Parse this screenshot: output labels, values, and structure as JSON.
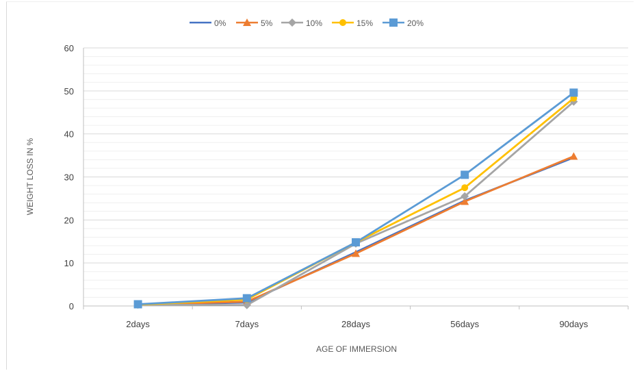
{
  "chart_data": {
    "type": "line",
    "title": "",
    "xlabel": "AGE OF IMMERSION",
    "ylabel": "WEIGHT LOSS IN %",
    "categories": [
      "2days",
      "7days",
      "28days",
      "56days",
      "90days"
    ],
    "ylim": [
      0,
      60
    ],
    "yticks": [
      0,
      10,
      20,
      30,
      40,
      50,
      60
    ],
    "grid": true,
    "legend_position": "top",
    "series": [
      {
        "name": "0%",
        "color": "#4472c4",
        "marker": "none",
        "values": [
          0.3,
          0.8,
          12.5,
          24.5,
          34.5
        ]
      },
      {
        "name": "5%",
        "color": "#ed7d31",
        "marker": "triangle",
        "values": [
          0.3,
          1.0,
          12.2,
          24.3,
          34.8
        ]
      },
      {
        "name": "10%",
        "color": "#a5a5a5",
        "marker": "diamond",
        "values": [
          0.3,
          0.2,
          14.5,
          25.5,
          47.5
        ]
      },
      {
        "name": "15%",
        "color": "#ffc000",
        "marker": "circle",
        "values": [
          0.3,
          1.5,
          14.8,
          27.5,
          48.3
        ]
      },
      {
        "name": "20%",
        "color": "#5b9bd5",
        "marker": "square",
        "values": [
          0.4,
          1.8,
          14.8,
          30.5,
          49.6
        ]
      }
    ]
  }
}
